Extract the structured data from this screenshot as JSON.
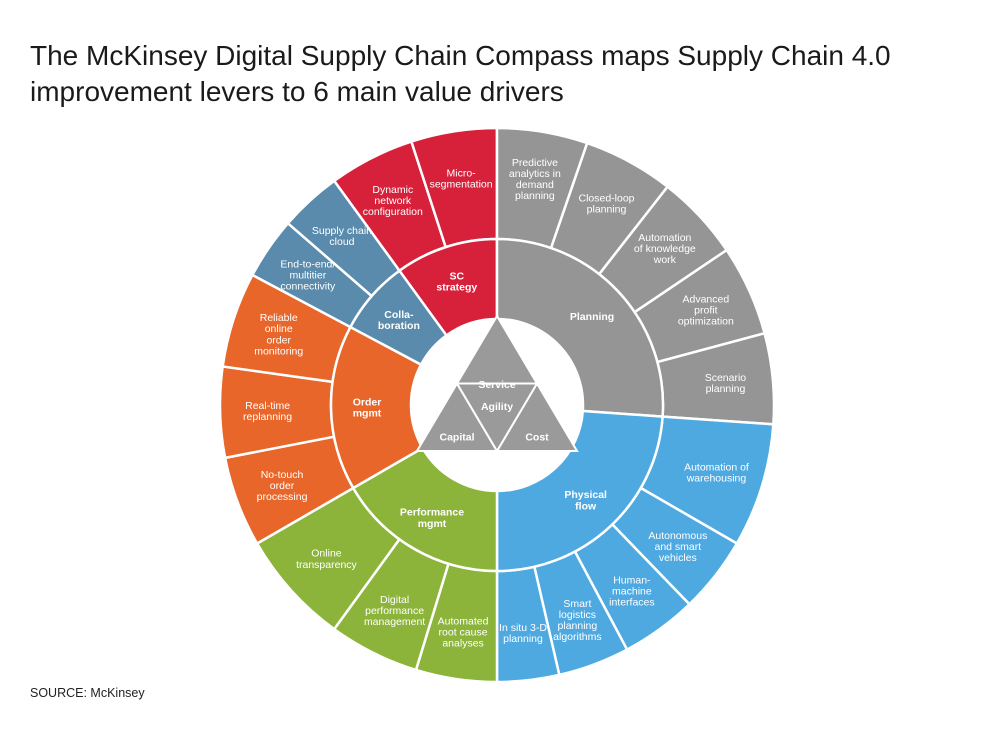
{
  "title": {
    "line1": "The McKinsey Digital Supply Chain Compass maps Supply Chain 4.0",
    "line2": "improvement levers to 6 main value drivers"
  },
  "source": "SOURCE: McKinsey",
  "colors": {
    "sc_strategy": "#d7213a",
    "planning": "#959595",
    "physical_flow": "#4ea9e1",
    "performance_mgmt": "#8cb43b",
    "order_mgmt": "#e8662a",
    "collaboration": "#5a8bac",
    "core": "#9a9a9a"
  },
  "value_drivers": {
    "top": "Service",
    "middle": "Agility",
    "left": "Capital",
    "right": "Cost"
  },
  "categories": [
    {
      "key": "sc_strategy",
      "label": [
        "SC",
        "strategy"
      ],
      "levers": [
        [
          "Dynamic",
          "network",
          "configuration"
        ],
        [
          "Micro-",
          "segmentation"
        ]
      ]
    },
    {
      "key": "planning",
      "label": [
        "Planning"
      ],
      "levers": [
        [
          "Predictive",
          "analytics in",
          "demand",
          "planning"
        ],
        [
          "Closed-loop",
          "planning"
        ],
        [
          "Automation",
          "of knowledge",
          "work"
        ],
        [
          "Advanced",
          "profit",
          "optimization"
        ],
        [
          "Scenario",
          "planning"
        ]
      ]
    },
    {
      "key": "physical_flow",
      "label": [
        "Physical",
        "flow"
      ],
      "levers": [
        [
          "Automation of",
          "warehousing"
        ],
        [
          "Autonomous",
          "and smart",
          "vehicles"
        ],
        [
          "Human-",
          "machine",
          "interfaces"
        ],
        [
          "Smart",
          "logistics",
          "planning",
          "algorithms"
        ],
        [
          "In situ 3-D",
          "planning"
        ]
      ]
    },
    {
      "key": "performance_mgmt",
      "label": [
        "Performance",
        "mgmt"
      ],
      "levers": [
        [
          "Automated",
          "root cause",
          "analyses"
        ],
        [
          "Digital",
          "performance",
          "management"
        ],
        [
          "Online",
          "transparency"
        ]
      ]
    },
    {
      "key": "order_mgmt",
      "label": [
        "Order",
        "mgmt"
      ],
      "levers": [
        [
          "No-touch",
          "order",
          "processing"
        ],
        [
          "Real-time",
          "replanning"
        ],
        [
          "Reliable",
          "online",
          "order",
          "monitoring"
        ]
      ]
    },
    {
      "key": "collaboration",
      "label": [
        "Colla-",
        "boration"
      ],
      "levers": [
        [
          "End-to-end/",
          "multitier",
          "connectivity"
        ],
        [
          "Supply chain",
          "cloud"
        ]
      ]
    }
  ]
}
